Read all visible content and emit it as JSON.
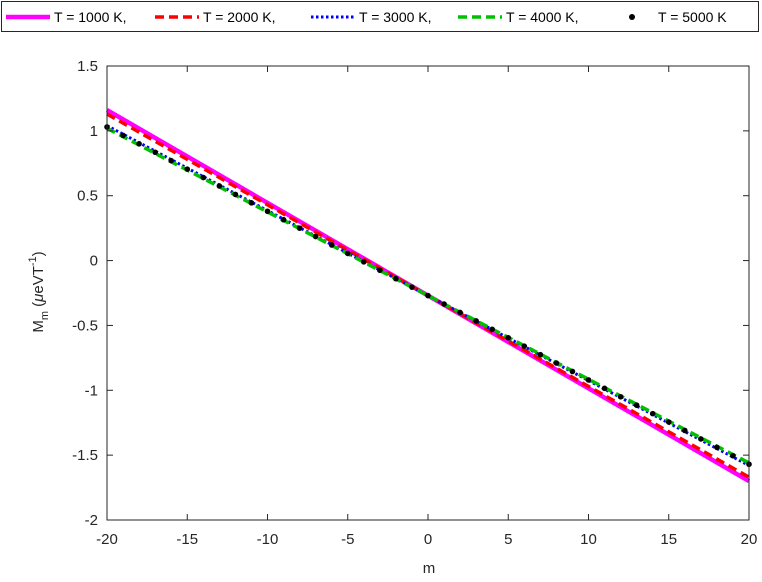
{
  "chart_data": {
    "type": "line",
    "title": "",
    "xlabel": "m",
    "ylabel": {
      "base": "M",
      "subscript": "m",
      "open": " (",
      "mu": "μ",
      "unit": "eVT",
      "superscript": "-1",
      "close": ")"
    },
    "xlim": [
      -20,
      20
    ],
    "ylim": [
      -2,
      1.5
    ],
    "xticks": [
      "-20",
      "-15",
      "-10",
      "-5",
      "0",
      "5",
      "10",
      "15",
      "20"
    ],
    "yticks": [
      "1.5",
      "1",
      "0.5",
      "0",
      "-0.5",
      "-1",
      "-1.5",
      "-2"
    ],
    "grid": false,
    "legend_position": "top",
    "series": [
      {
        "name": "T = 1000 K,",
        "color": "#ff00ff",
        "style": "solid",
        "intercept": -0.27,
        "slope": -0.0715
      },
      {
        "name": "T = 2000 K,",
        "color": "#ff0000",
        "style": "dashed",
        "intercept": -0.27,
        "slope": -0.07
      },
      {
        "name": "T = 3000 K,",
        "color": "#0000ff",
        "style": "dotted",
        "intercept": -0.27,
        "slope": -0.0655
      },
      {
        "name": "T = 4000 K,",
        "color": "#00c000",
        "style": "dashed",
        "intercept": -0.27,
        "slope": -0.0645
      },
      {
        "name": "T = 5000 K",
        "color": "#000000",
        "style": "markers",
        "intercept": -0.27,
        "slope": -0.065,
        "x_start": -20,
        "x_end": 20,
        "x_step": 1
      }
    ]
  }
}
